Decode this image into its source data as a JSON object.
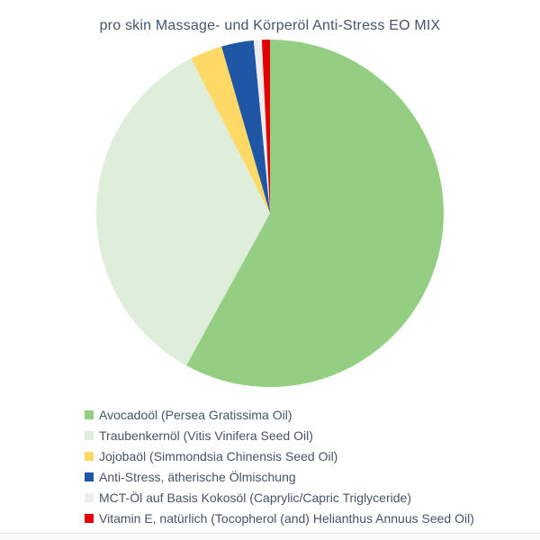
{
  "chart_data": {
    "type": "pie",
    "title": "pro skin Massage- und Körperöl Anti-Stress EO MIX",
    "legend_position": "bottom-left",
    "start_angle_deg": 0,
    "direction": "clockwise",
    "values_unit": "percent",
    "slices": [
      {
        "label": "Avocadoöl (Persea Gratissima Oil)",
        "value": 58,
        "color": "#93CE82"
      },
      {
        "label": "Traubenkernöl (Vitis Vinifera Seed Oil)",
        "value": 34.5,
        "color": "#DFEEDA"
      },
      {
        "label": "Jojobaöl (Simmondsia Chinensis Seed Oil)",
        "value": 3,
        "color": "#FFD966"
      },
      {
        "label": "Anti-Stress, ätherische Ölmischung",
        "value": 3,
        "color": "#1F56A5"
      },
      {
        "label": "MCT-Öl auf Basis Kokosöl (Caprylic/Capric Triglyceride)",
        "value": 0.75,
        "color": "#EDEDED"
      },
      {
        "label": "Vitamin E, natürlich (Tocopherol (and) Helianthus Annuus Seed Oil)",
        "value": 0.75,
        "color": "#E30000"
      }
    ],
    "colors": {
      "background": "#FFFFFF",
      "text": "#44546A"
    }
  }
}
